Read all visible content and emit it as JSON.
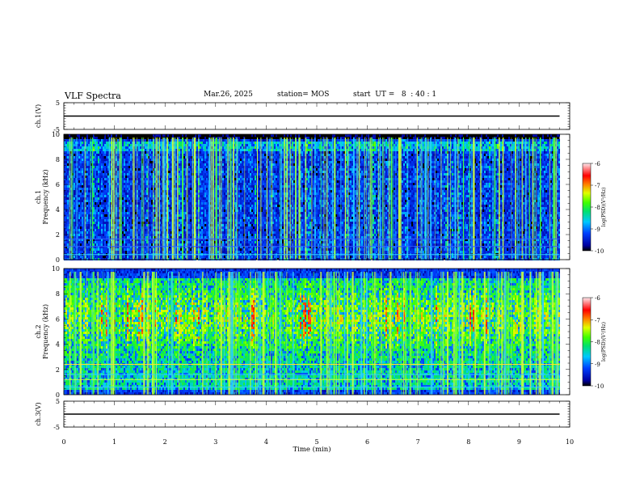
{
  "header": {
    "title": "VLF Spectra",
    "date": "Mar.26, 2025",
    "station": "station= MOS",
    "start_ut": "start  UT =   8  : 40 : 1"
  },
  "chart_data": [
    {
      "type": "line",
      "panel": "ch.1 waveform",
      "ylabel": "ch.1(V)",
      "ylim": [
        -5,
        5
      ],
      "yticks": [
        "5",
        "-5"
      ],
      "series": [
        {
          "x": [
            0,
            9.8
          ],
          "values": [
            0,
            0
          ]
        }
      ]
    },
    {
      "type": "heatmap",
      "panel": "ch.1 spectrogram",
      "ylabel": "ch.1\nFrequency  (kHz)",
      "ylim": [
        0,
        10
      ],
      "yticks": [
        "0",
        "2",
        "4",
        "6",
        "8",
        "10"
      ],
      "data_extent_min": 9.8,
      "colorbar": {
        "label": "log(PSD)(V²/Hz)",
        "range": [
          -10,
          -6
        ],
        "ticks": [
          "-6",
          "-7",
          "-8",
          "-9",
          "-10"
        ]
      }
    },
    {
      "type": "heatmap",
      "panel": "ch.2 spectrogram",
      "ylabel": "ch.2\nFrequency  (kHz)",
      "ylim": [
        0,
        10
      ],
      "yticks": [
        "0",
        "2",
        "4",
        "6",
        "8",
        "10"
      ],
      "data_extent_min": 9.8,
      "colorbar": {
        "label": "log(PSD)(V²/Hz)",
        "range": [
          -10,
          -6
        ],
        "ticks": [
          "-6",
          "-7",
          "-8",
          "-9",
          "-10"
        ]
      }
    },
    {
      "type": "line",
      "panel": "ch.3 waveform",
      "ylabel": "ch.3(V)",
      "ylim": [
        -5,
        5
      ],
      "yticks": [
        "5",
        "-5"
      ],
      "series": [
        {
          "x": [
            0,
            9.8
          ],
          "values": [
            0,
            0
          ]
        }
      ]
    }
  ],
  "xaxis": {
    "label": "Time  (min)",
    "range": [
      0,
      10
    ],
    "ticks": [
      "0",
      "1",
      "2",
      "3",
      "4",
      "5",
      "6",
      "7",
      "8",
      "9",
      "10"
    ]
  }
}
